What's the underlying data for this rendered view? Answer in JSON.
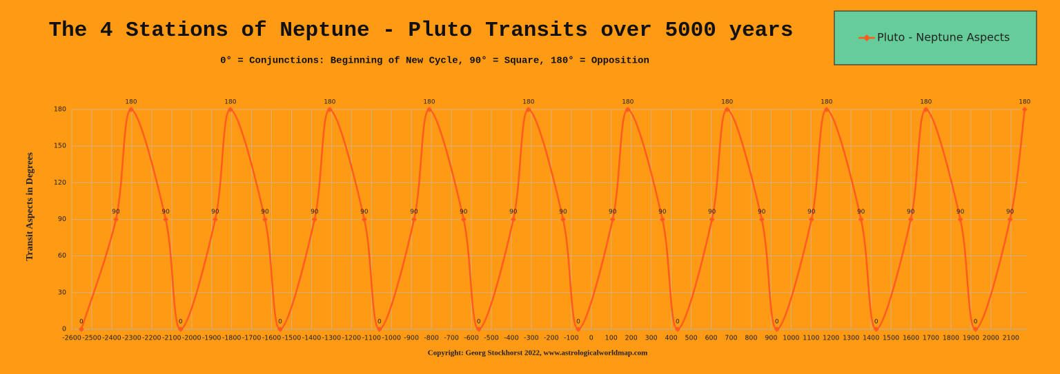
{
  "chart_data": {
    "type": "line",
    "title": "The 4 Stations of Neptune - Pluto Transits over 5000 years",
    "subtitle": "0° = Conjunctions: Beginning of New Cycle, 90° = Square, 180° = Opposition",
    "y_label": "Transit Aspects in Degrees",
    "caption": "Copyright: Georg Stockhorst 2022, www.astrologicalworldmap.com",
    "legend": "upper right",
    "grid": true,
    "x": [
      -2552,
      -2379,
      -2303,
      -2130,
      -2055,
      -1882,
      -1806,
      -1633,
      -1557,
      -1385,
      -1309,
      -1136,
      -1060,
      -887,
      -811,
      -639,
      -563,
      -390,
      -314,
      -141,
      -65,
      107,
      183,
      356,
      432,
      604,
      680,
      853,
      929,
      1102,
      1178,
      1350,
      1426,
      1599,
      1675,
      1847,
      1923,
      2096,
      2169
    ],
    "series": [
      {
        "name": "Pluto - Neptune Aspects",
        "color": "#ff5a1f",
        "values": [
          0,
          90,
          180,
          90,
          0,
          90,
          180,
          90,
          0,
          90,
          180,
          90,
          0,
          90,
          180,
          90,
          0,
          90,
          180,
          90,
          0,
          90,
          180,
          90,
          0,
          90,
          180,
          90,
          0,
          90,
          180,
          90,
          0,
          90,
          180,
          90,
          0,
          90,
          180
        ]
      }
    ],
    "xlim": [
      -2600,
      2180
    ],
    "ylim": [
      0,
      180
    ],
    "xticks": [
      -2600,
      -2500,
      -2400,
      -2300,
      -2200,
      -2100,
      -2000,
      -1900,
      -1800,
      -1700,
      -1600,
      -1500,
      -1400,
      -1300,
      -1200,
      -1100,
      -1000,
      -900,
      -800,
      -700,
      -600,
      -500,
      -400,
      -300,
      -200,
      -100,
      0,
      100,
      200,
      300,
      400,
      500,
      600,
      700,
      800,
      900,
      1000,
      1100,
      1200,
      1300,
      1400,
      1500,
      1600,
      1700,
      1800,
      1900,
      2000,
      2100
    ],
    "yticks": [
      0,
      30,
      60,
      90,
      120,
      150,
      180
    ]
  }
}
